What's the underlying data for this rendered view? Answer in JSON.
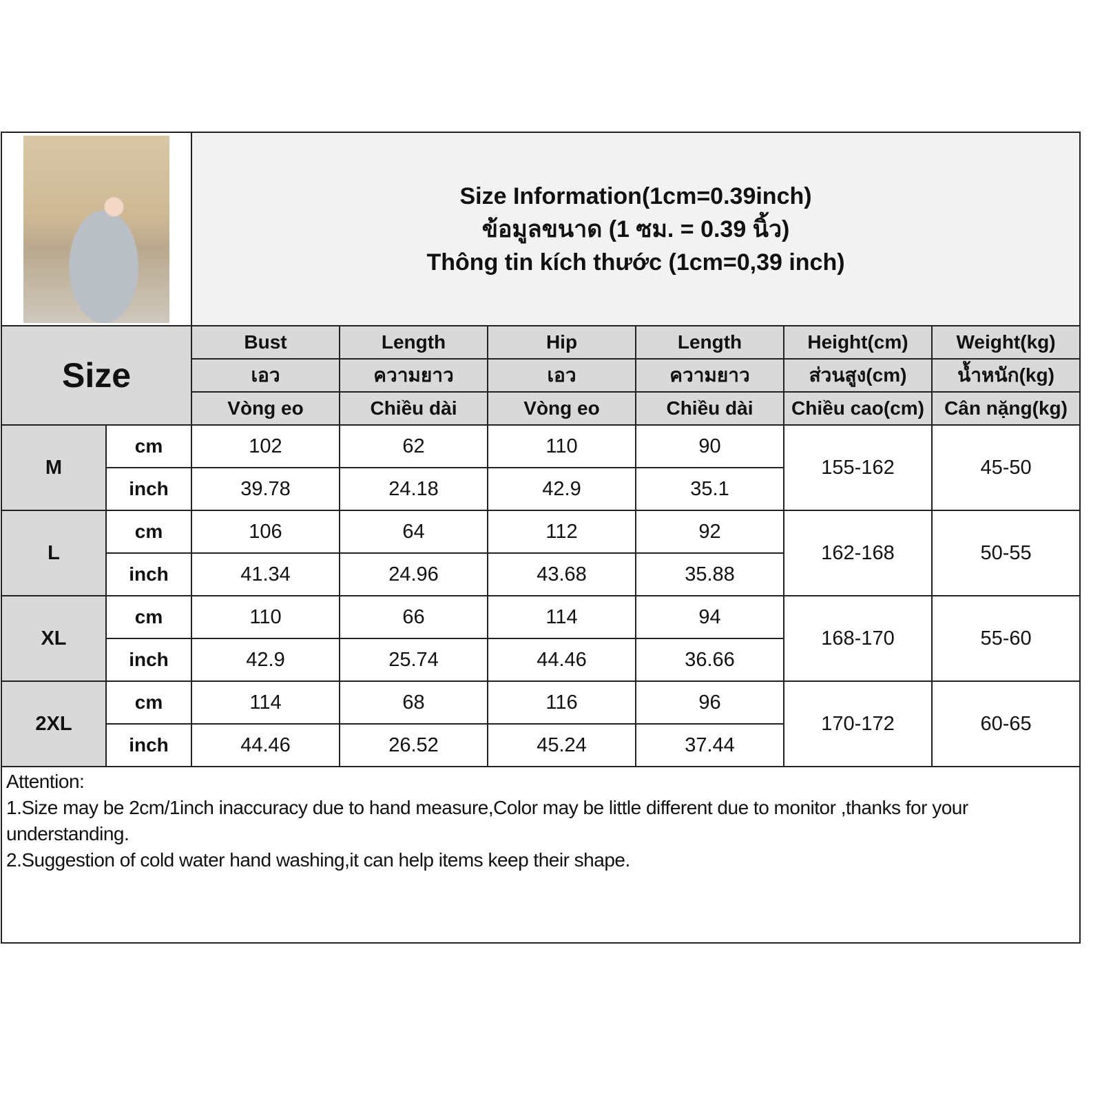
{
  "title": {
    "line1": "Size Information(1cm=0.39inch)",
    "line2": "ข้อมูลขนาด (1 ซม. = 0.39 นิ้ว)",
    "line3": "Thông tin kích thước (1cm=0,39 inch)"
  },
  "size_label": "Size",
  "columns": [
    {
      "en": "Bust",
      "th": "เอว",
      "vi": "Vòng eo"
    },
    {
      "en": "Length",
      "th": "ความยาว",
      "vi": "Chiều dài"
    },
    {
      "en": "Hip",
      "th": "เอว",
      "vi": "Vòng eo"
    },
    {
      "en": "Length",
      "th": "ความยาว",
      "vi": "Chiều dài"
    },
    {
      "en": "Height(cm)",
      "th": "ส่วนสูง(cm)",
      "vi": "Chiều cao(cm)"
    },
    {
      "en": "Weight(kg)",
      "th": "น้ำหนัก(kg)",
      "vi": "Cân nặng(kg)"
    }
  ],
  "units": {
    "cm": "cm",
    "inch": "inch"
  },
  "rows": [
    {
      "size": "M",
      "cm": [
        "102",
        "62",
        "110",
        "90"
      ],
      "inch": [
        "39.78",
        "24.18",
        "42.9",
        "35.1"
      ],
      "height": "155-162",
      "weight": "45-50"
    },
    {
      "size": "L",
      "cm": [
        "106",
        "64",
        "112",
        "92"
      ],
      "inch": [
        "41.34",
        "24.96",
        "43.68",
        "35.88"
      ],
      "height": "162-168",
      "weight": "50-55"
    },
    {
      "size": "XL",
      "cm": [
        "110",
        "66",
        "114",
        "94"
      ],
      "inch": [
        "42.9",
        "25.74",
        "44.46",
        "36.66"
      ],
      "height": "168-170",
      "weight": "55-60"
    },
    {
      "size": "2XL",
      "cm": [
        "114",
        "68",
        "116",
        "96"
      ],
      "inch": [
        "44.46",
        "26.52",
        "45.24",
        "37.44"
      ],
      "height": "170-172",
      "weight": "60-65"
    }
  ],
  "notes": {
    "heading": "Attention:",
    "line1": "1.Size may be 2cm/1inch inaccuracy due to hand measure,Color may be little different due to monitor ,thanks for your understanding.",
    "line2": "2.Suggestion of cold water hand washing,it can help items keep their shape."
  }
}
